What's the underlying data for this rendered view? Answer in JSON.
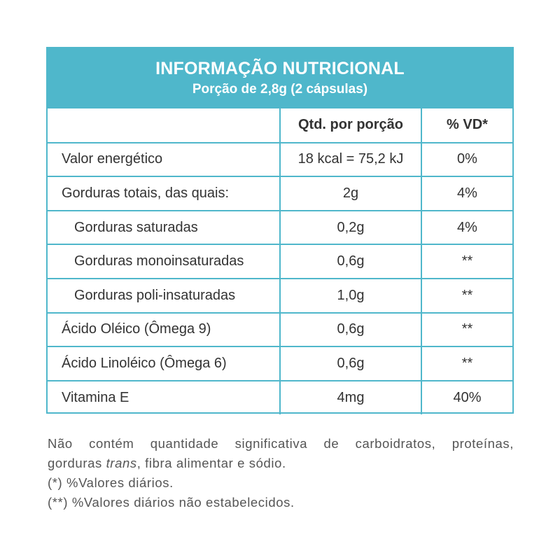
{
  "header": {
    "title": "INFORMAÇÃO NUTRICIONAL",
    "subtitle": "Porção de 2,8g (2 cápsulas)"
  },
  "columns": [
    "",
    "Qtd. por porção",
    "% VD*"
  ],
  "rows": [
    {
      "name": "Valor energético",
      "qty": "18 kcal = 75,2 kJ",
      "vd": "0%"
    },
    {
      "name": "Gorduras totais, das quais:",
      "qty": "2g",
      "vd": "4%"
    },
    {
      "name": "Gorduras saturadas",
      "qty": "0,2g",
      "vd": "4%"
    },
    {
      "name": "Gorduras monoinsaturadas",
      "qty": "0,6g",
      "vd": "**"
    },
    {
      "name": "Gorduras poli-insaturadas",
      "qty": "1,0g",
      "vd": "**"
    },
    {
      "name": "Ácido Oléico (Ômega 9)",
      "qty": "0,6g",
      "vd": "**"
    },
    {
      "name": "Ácido Linoléico (Ômega 6)",
      "qty": "0,6g",
      "vd": "**"
    },
    {
      "name": "Vitamina E",
      "qty": "4mg",
      "vd": "40%"
    }
  ],
  "footnotes": {
    "line1": "Não contém quantidade significativa de carboidratos, proteínas,",
    "line2_before": "gorduras ",
    "line2_italic": "trans",
    "line2_after": ", fibra alimentar e sódio.",
    "note1": "(*) %Valores diários.",
    "note2": "(**) %Valores diários não estabelecidos."
  },
  "colors": {
    "accent": "#4fb7cb",
    "text": "#333333",
    "footnote_text": "#555555"
  }
}
